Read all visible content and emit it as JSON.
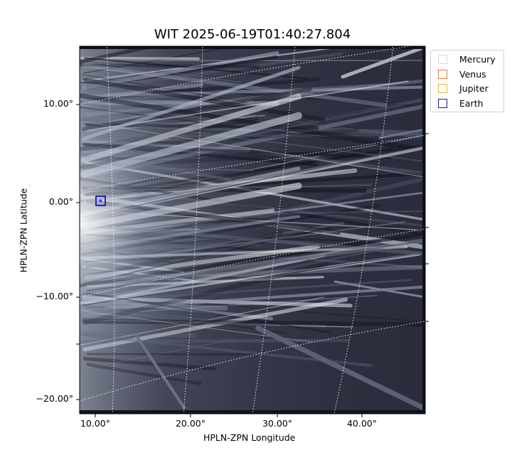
{
  "plot": {
    "title": "WIT 2025-06-19T01:40:27.804",
    "xlabel": "HPLN-ZPN Longitude",
    "ylabel": "HPLN-ZPN Latitude",
    "x_ticks": [
      "10.00°",
      "20.00°",
      "30.00°",
      "40.00°"
    ],
    "y_ticks": [
      "10.00°",
      "0.00°",
      "−10.00°",
      "−20.00°"
    ],
    "colormap": "bone",
    "grid_style": "dotted white"
  },
  "legend": {
    "items": [
      {
        "label": "Mercury",
        "color": "#d9d9d9"
      },
      {
        "label": "Venus",
        "color": "#e0783c"
      },
      {
        "label": "Jupiter",
        "color": "#e8b33a"
      },
      {
        "label": "Earth",
        "color": "#1a1a8c"
      }
    ]
  },
  "markers": {
    "earth": {
      "name": "Earth",
      "color": "#0000cc"
    }
  }
}
